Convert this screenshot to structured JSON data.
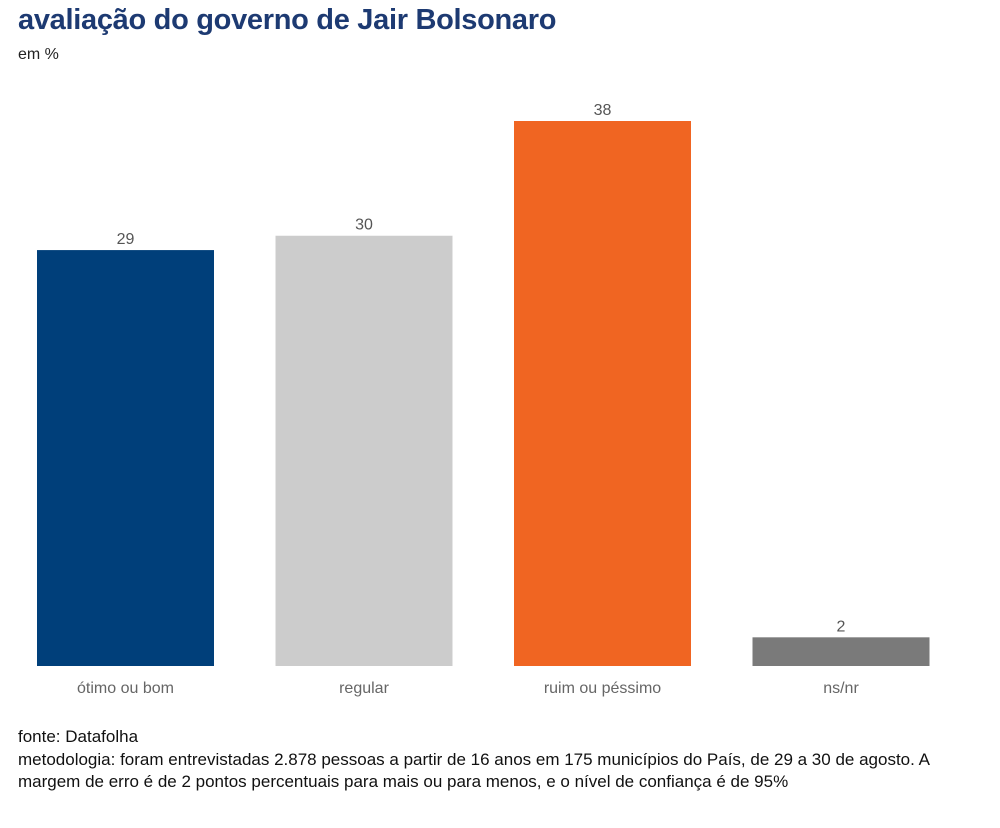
{
  "chart_data": {
    "type": "bar",
    "title": "avaliação do governo de Jair Bolsonaro",
    "subtitle": "em %",
    "categories": [
      "ótimo ou bom",
      "regular",
      "ruim ou péssimo",
      "ns/nr"
    ],
    "values": [
      29,
      30,
      38,
      2
    ],
    "colors": [
      "#003f7a",
      "#cccccc",
      "#f06522",
      "#7a7a7a"
    ],
    "xlabel": "",
    "ylabel": "",
    "ylim": [
      0,
      38
    ],
    "grid": false,
    "data_labels": true
  },
  "footer": {
    "source": "fonte: Datafolha",
    "methodology": "metodologia: foram entrevistadas 2.878 pessoas a partir de 16 anos em 175 municípios do País, de 29 a 30 de agosto. A margem de erro é de 2 pontos percentuais para mais ou para menos, e o nível de confiança é de 95%"
  }
}
